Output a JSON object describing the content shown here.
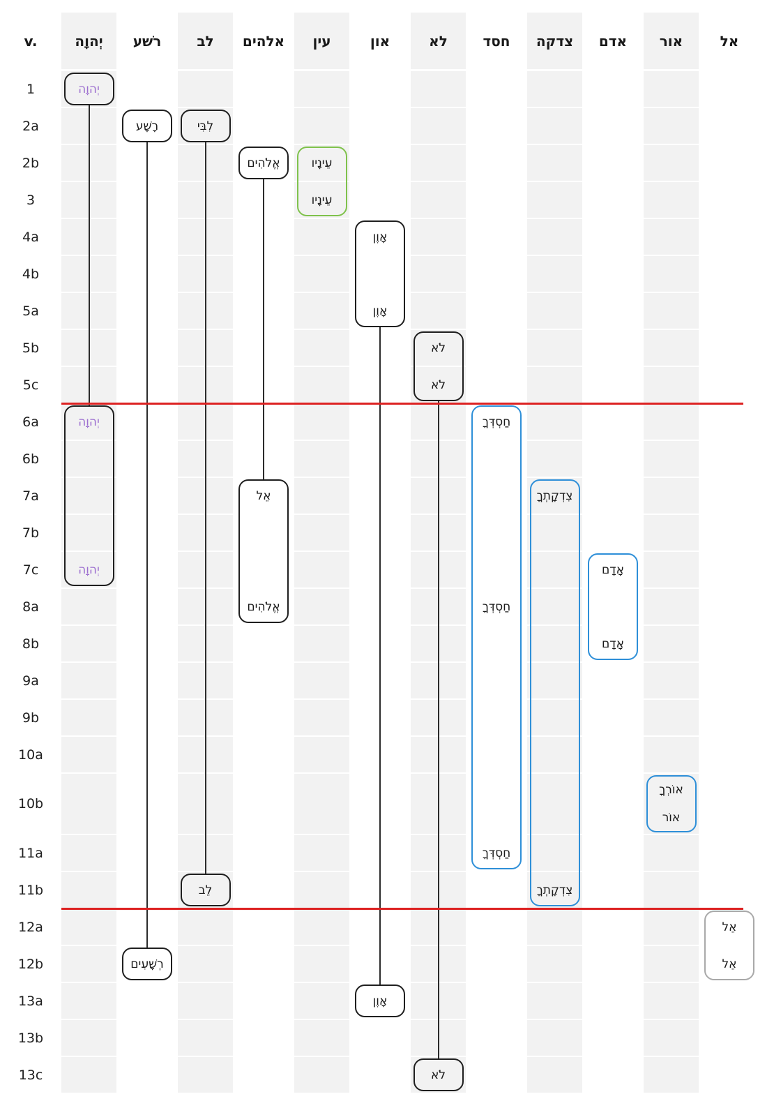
{
  "chart_data": {
    "type": "table",
    "description_of_plot": "Key-word distribution chart across psalm verse lines; columns are Hebrew lexemes, rows are verse segments; rounded boxes mark occurrences and vertical lines connect repeated occurrences; red lines mark section breaks",
    "verse_column_header": "v.",
    "rows": [
      "1",
      "2a",
      "2b",
      "3",
      "4a",
      "4b",
      "5a",
      "5b",
      "5c",
      "6a",
      "6b",
      "7a",
      "7b",
      "7c",
      "8a",
      "8b",
      "9a",
      "9b",
      "10a",
      "10b",
      "11a",
      "11b",
      "12a",
      "12b",
      "13a",
      "13b",
      "13c"
    ],
    "columns": [
      {
        "key": "yhwh",
        "label": "יְהוָה",
        "shaded": true
      },
      {
        "key": "rasha",
        "label": "רשׁע",
        "shaded": false
      },
      {
        "key": "lev",
        "label": "לב",
        "shaded": true
      },
      {
        "key": "elohim",
        "label": "אלהים",
        "shaded": false
      },
      {
        "key": "ayin",
        "label": "עין",
        "shaded": true
      },
      {
        "key": "aven",
        "label": "און",
        "shaded": false
      },
      {
        "key": "lo",
        "label": "לא",
        "shaded": true
      },
      {
        "key": "chesed",
        "label": "חסד",
        "shaded": false
      },
      {
        "key": "tzedaqah",
        "label": "צדקה",
        "shaded": true
      },
      {
        "key": "adam",
        "label": "אדם",
        "shaded": false
      },
      {
        "key": "or",
        "label": "אור",
        "shaded": true
      },
      {
        "key": "el",
        "label": "אל",
        "shaded": false
      }
    ],
    "section_breaks_after_rows": [
      "5c",
      "11b"
    ],
    "boxes": [
      {
        "column": "yhwh",
        "from": "1",
        "to": "1",
        "style": "black",
        "words": [
          {
            "row": "1",
            "text": "יְהוָה",
            "accent": "purple"
          }
        ]
      },
      {
        "column": "rasha",
        "from": "2a",
        "to": "2a",
        "style": "black",
        "words": [
          {
            "row": "2a",
            "text": "רָשָׁע"
          }
        ]
      },
      {
        "column": "lev",
        "from": "2a",
        "to": "2a",
        "style": "black",
        "words": [
          {
            "row": "2a",
            "text": "לִבִּי"
          }
        ]
      },
      {
        "column": "elohim",
        "from": "2b",
        "to": "2b",
        "style": "black",
        "words": [
          {
            "row": "2b",
            "text": "אֱלֹהִים"
          }
        ]
      },
      {
        "column": "ayin",
        "from": "2b",
        "to": "3",
        "style": "green",
        "words": [
          {
            "row": "2b",
            "text": "עֵינָיו"
          },
          {
            "row": "3",
            "text": "עֵינָיו"
          }
        ]
      },
      {
        "column": "aven",
        "from": "4a",
        "to": "5a",
        "style": "black",
        "words": [
          {
            "row": "4a",
            "text": "אָוֶן"
          },
          {
            "row": "5a",
            "text": "אָוֶן"
          }
        ]
      },
      {
        "column": "lo",
        "from": "5b",
        "to": "5c",
        "style": "black",
        "words": [
          {
            "row": "5b",
            "text": "לֹא"
          },
          {
            "row": "5c",
            "text": "לֹא"
          }
        ]
      },
      {
        "column": "yhwh",
        "from": "6a",
        "to": "7c",
        "style": "black",
        "words": [
          {
            "row": "6a",
            "text": "יְהוָה",
            "accent": "purple"
          },
          {
            "row": "7c",
            "text": "יְהוָה",
            "accent": "purple"
          }
        ]
      },
      {
        "column": "chesed",
        "from": "6a",
        "to": "11a",
        "style": "blue",
        "words": [
          {
            "row": "6a",
            "text": "חַסְדְּךָ"
          },
          {
            "row": "8a",
            "text": "חַסְדְּךָ"
          },
          {
            "row": "11a",
            "text": "חַסְדְּךָ"
          }
        ]
      },
      {
        "column": "elohim",
        "from": "7a",
        "to": "8a",
        "style": "black",
        "words": [
          {
            "row": "7a",
            "text": "אֵל"
          },
          {
            "row": "8a",
            "text": "אֱלֹהִים"
          }
        ]
      },
      {
        "column": "tzedaqah",
        "from": "7a",
        "to": "11b",
        "style": "blue",
        "words": [
          {
            "row": "7a",
            "text": "צִדְקָתְךָ"
          },
          {
            "row": "11b",
            "text": "צִדְקָתְךָ"
          }
        ]
      },
      {
        "column": "adam",
        "from": "7c",
        "to": "8b",
        "style": "blue",
        "words": [
          {
            "row": "7c",
            "text": "אָדָם"
          },
          {
            "row": "8b",
            "text": "אָדָם"
          }
        ]
      },
      {
        "column": "or",
        "from": "10b",
        "to": "10b",
        "style": "blue",
        "words": [
          {
            "row": "10b",
            "text": "אוֹרְךָ",
            "stack": 0
          },
          {
            "row": "10b",
            "text": "אוֹר",
            "stack": 1
          }
        ]
      },
      {
        "column": "lev",
        "from": "11b",
        "to": "11b",
        "style": "black",
        "words": [
          {
            "row": "11b",
            "text": "לֵב"
          }
        ]
      },
      {
        "column": "el",
        "from": "12a",
        "to": "12b",
        "style": "gray",
        "words": [
          {
            "row": "12a",
            "text": "אֵל"
          },
          {
            "row": "12b",
            "text": "אֵל"
          }
        ]
      },
      {
        "column": "rasha",
        "from": "12b",
        "to": "12b",
        "style": "black",
        "words": [
          {
            "row": "12b",
            "text": "רְשָׁעִים"
          }
        ]
      },
      {
        "column": "aven",
        "from": "13a",
        "to": "13a",
        "style": "black",
        "words": [
          {
            "row": "13a",
            "text": "אָוֶן"
          }
        ]
      },
      {
        "column": "lo",
        "from": "13c",
        "to": "13c",
        "style": "black",
        "words": [
          {
            "row": "13c",
            "text": "לֹא"
          }
        ]
      }
    ],
    "connectors": [
      {
        "column": "yhwh",
        "from_row": "1",
        "to_row": "6a"
      },
      {
        "column": "rasha",
        "from_row": "2a",
        "to_row": "12b"
      },
      {
        "column": "lev",
        "from_row": "2a",
        "to_row": "11b"
      },
      {
        "column": "elohim",
        "from_row": "2b",
        "to_row": "7a"
      },
      {
        "column": "aven",
        "from_row": "5a",
        "to_row": "13a"
      },
      {
        "column": "lo",
        "from_row": "5c",
        "to_row": "13c"
      }
    ],
    "colors": {
      "box_black": "#1f1f1f",
      "box_green": "#7fc24c",
      "box_blue": "#2e8fd8",
      "box_gray": "#a9a9a9",
      "word_default": "#1a1a1a",
      "word_purple": "#9d70d0",
      "section_line": "#dd2222",
      "column_shade": "#f2f2f2",
      "connector": "#2b2b2b",
      "background": "#ffffff"
    }
  }
}
